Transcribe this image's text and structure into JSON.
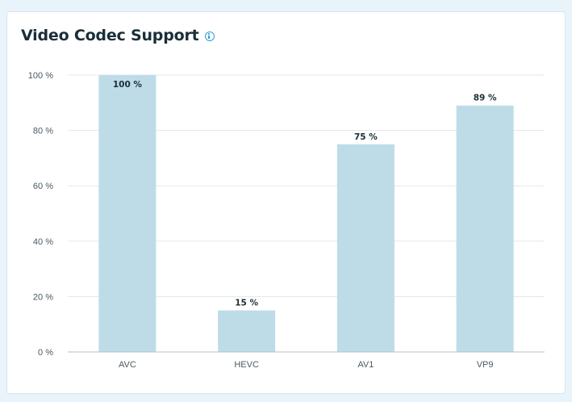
{
  "header": {
    "title": "Video Codec Support",
    "info_icon": "info-icon"
  },
  "colors": {
    "bar": "#bddce8",
    "grid": "#e3e7ea",
    "axis": "#b8c0c5",
    "info": "#2a9fd8"
  },
  "chart_data": {
    "type": "bar",
    "title": "Video Codec Support",
    "xlabel": "",
    "ylabel": "",
    "categories": [
      "AVC",
      "HEVC",
      "AV1",
      "VP9"
    ],
    "values": [
      100,
      15,
      75,
      89
    ],
    "data_labels": [
      "100 %",
      "15 %",
      "75 %",
      "89 %"
    ],
    "ylim": [
      0,
      100
    ],
    "yticks": [
      0,
      20,
      40,
      60,
      80,
      100
    ],
    "ytick_labels": [
      "0 %",
      "20 %",
      "40 %",
      "60 %",
      "80 %",
      "100 %"
    ],
    "grid": true,
    "legend": "none"
  }
}
